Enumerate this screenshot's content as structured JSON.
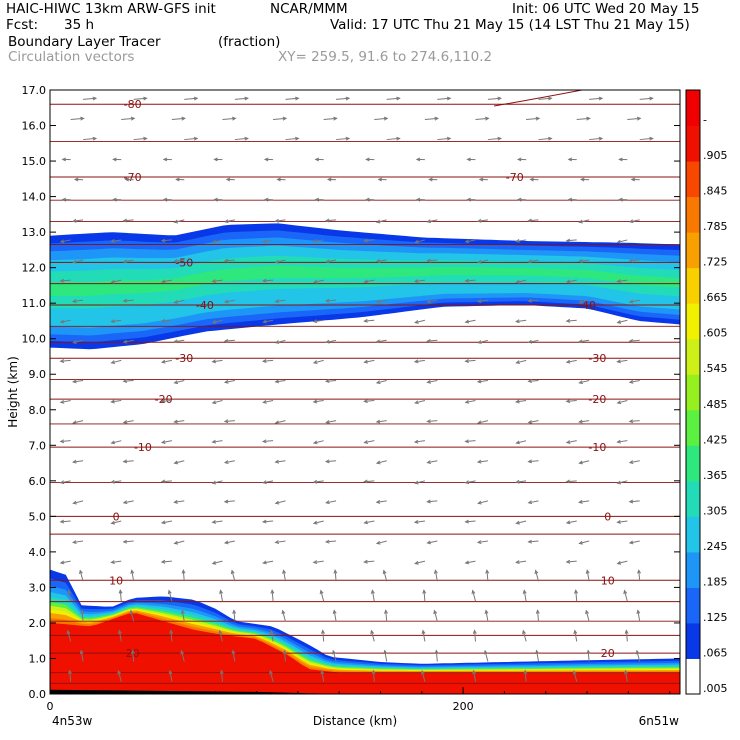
{
  "header": {
    "model": "HAIC-HIWC 13km ARW-GFS init",
    "center": "NCAR/MMM",
    "init": "Init: 06 UTC Wed 20 May 15",
    "fcst_label": "Fcst:",
    "fcst_value": "35 h",
    "valid": "Valid: 17 UTC Thu 21 May 15 (14 LST Thu 21 May 15)",
    "field": "Boundary Layer Tracer",
    "units": "(fraction)",
    "overlay": "Circulation vectors",
    "xy": "XY= 259.5, 91.6 to 274.6,110.2"
  },
  "chart_data": {
    "type": "heatmap",
    "ylabel": "Height (km)",
    "xlabel": "Distance (km)",
    "x_left_label": "4n53w",
    "x_right_label": "6n51w",
    "xlim": [
      0,
      305
    ],
    "ylim": [
      0,
      17
    ],
    "x_ticks": [
      0,
      200
    ],
    "y_ticks": [
      "0.0",
      "1.0",
      "2.0",
      "3.0",
      "4.0",
      "5.0",
      "6.0",
      "7.0",
      "8.0",
      "9.0",
      "10.0",
      "11.0",
      "12.0",
      "13.0",
      "14.0",
      "15.0",
      "16.0",
      "17.0"
    ],
    "colorbar": {
      "labels": [
        ".005",
        ".065",
        ".125",
        ".185",
        ".245",
        ".305",
        ".365",
        ".425",
        ".485",
        ".545",
        ".605",
        ".665",
        ".725",
        ".785",
        ".845",
        ".905",
        "-"
      ],
      "colors": [
        "#ffffff",
        "#0838e8",
        "#1a66f8",
        "#1e96f8",
        "#22c4e8",
        "#22dcb8",
        "#2ee87e",
        "#5cf040",
        "#96f020",
        "#ccf018",
        "#f0f000",
        "#f8d000",
        "#f8a000",
        "#f87800",
        "#f84800",
        "#f01000",
        "#f00000"
      ]
    },
    "upper_layer": {
      "top": [
        [
          0,
          12.9
        ],
        [
          30,
          13.0
        ],
        [
          60,
          12.9
        ],
        [
          85,
          13.2
        ],
        [
          110,
          13.25
        ],
        [
          140,
          13.05
        ],
        [
          180,
          12.85
        ],
        [
          230,
          12.75
        ],
        [
          280,
          12.7
        ],
        [
          305,
          12.65
        ]
      ],
      "bottom": [
        [
          0,
          9.75
        ],
        [
          20,
          9.7
        ],
        [
          45,
          9.85
        ],
        [
          75,
          10.2
        ],
        [
          110,
          10.4
        ],
        [
          150,
          10.6
        ],
        [
          190,
          10.9
        ],
        [
          230,
          10.95
        ],
        [
          260,
          10.85
        ],
        [
          285,
          10.5
        ],
        [
          305,
          10.4
        ]
      ]
    },
    "lower_layer": {
      "top": [
        [
          0,
          3.5
        ],
        [
          8,
          3.35
        ],
        [
          15,
          2.5
        ],
        [
          30,
          2.45
        ],
        [
          40,
          2.7
        ],
        [
          55,
          2.75
        ],
        [
          70,
          2.65
        ],
        [
          80,
          2.4
        ],
        [
          90,
          2.05
        ],
        [
          108,
          1.9
        ],
        [
          120,
          1.55
        ],
        [
          128,
          1.3
        ],
        [
          135,
          1.05
        ],
        [
          160,
          0.9
        ],
        [
          180,
          0.85
        ],
        [
          220,
          0.9
        ],
        [
          260,
          0.95
        ],
        [
          305,
          1.0
        ]
      ],
      "core": [
        [
          0,
          2.0
        ],
        [
          20,
          1.9
        ],
        [
          40,
          2.3
        ],
        [
          55,
          2.05
        ],
        [
          70,
          1.8
        ],
        [
          85,
          1.65
        ],
        [
          100,
          1.55
        ],
        [
          115,
          1.1
        ],
        [
          125,
          0.7
        ],
        [
          140,
          0.6
        ],
        [
          305,
          0.6
        ]
      ]
    },
    "temperature_contours": [
      {
        "label": "-80",
        "level": 16.6,
        "label_x": [
          40
        ]
      },
      {
        "label": "-70",
        "level": 14.55,
        "label_x": [
          40,
          225
        ]
      },
      {
        "label": "-50",
        "level": 12.15,
        "label_x": [
          65
        ]
      },
      {
        "label": "-40",
        "level": 10.95,
        "label_x": [
          75,
          260
        ]
      },
      {
        "label": "-30",
        "level": 9.45,
        "label_x": [
          65,
          265
        ]
      },
      {
        "label": "-20",
        "level": 8.3,
        "label_x": [
          55,
          265
        ]
      },
      {
        "label": "-10",
        "level": 6.95,
        "label_x": [
          45,
          265
        ]
      },
      {
        "label": "0",
        "level": 5.0,
        "label_x": [
          32,
          270
        ]
      },
      {
        "label": "10",
        "level": 3.2,
        "label_x": [
          32,
          270
        ]
      },
      {
        "label": "20",
        "level": 1.15,
        "label_x": [
          40,
          270
        ]
      }
    ]
  }
}
